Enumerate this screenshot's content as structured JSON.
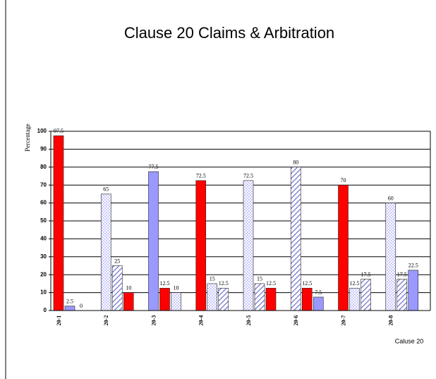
{
  "chart_data": {
    "type": "bar",
    "title": "Clause 20 Claims & Arbitration",
    "y_label": "Percentage",
    "x_label": "Caluse 20",
    "categories": [
      "20-1",
      "20-2",
      "20-3",
      "20-4",
      "20-5",
      "20-6",
      "20-7",
      "20-8"
    ],
    "series": [
      {
        "values": [
          97.5,
          65,
          77.5,
          72.5,
          72.5,
          80,
          70,
          60
        ],
        "fills": [
          "red",
          "check",
          "blue",
          "red",
          "check",
          "hatch",
          "red",
          "check"
        ]
      },
      {
        "values": [
          2.5,
          25,
          12.5,
          15,
          15,
          12.5,
          12.5,
          17.5
        ],
        "fills": [
          "blue",
          "hatch",
          "red",
          "check",
          "hatch",
          "red",
          "check",
          "hatch"
        ]
      },
      {
        "values": [
          0,
          10,
          10,
          12.5,
          12.5,
          7.5,
          17.5,
          22.5
        ],
        "fills": [
          "check",
          "red",
          "check",
          "hatch",
          "red",
          "blue",
          "hatch",
          "blue"
        ]
      }
    ],
    "ylim": [
      0,
      100
    ],
    "yticks": [
      0,
      10,
      20,
      30,
      40,
      50,
      60,
      70,
      80,
      90,
      100
    ],
    "grid": true
  }
}
